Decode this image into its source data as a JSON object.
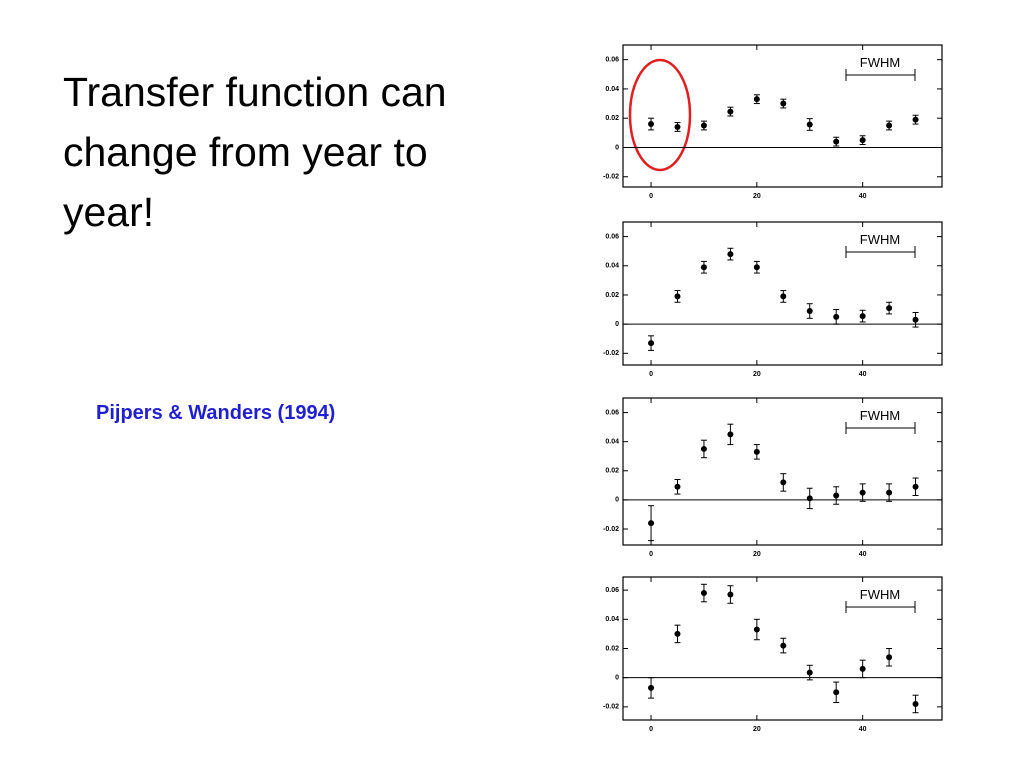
{
  "title": "Transfer function can change from year to year!",
  "citation": "Pijpers & Wanders (1994)",
  "chart_data": [
    {
      "type": "scatter",
      "annotation": "FWHM",
      "x": [
        0,
        5,
        10,
        15,
        20,
        25,
        30,
        35,
        40,
        45,
        50
      ],
      "values": [
        0.016,
        0.014,
        0.015,
        0.0245,
        0.033,
        0.03,
        0.0157,
        0.004,
        0.005,
        0.015,
        0.019
      ],
      "errors": [
        0.004,
        0.003,
        0.003,
        0.003,
        0.003,
        0.003,
        0.004,
        0.003,
        0.003,
        0.003,
        0.003
      ],
      "xlim": [
        -5.3,
        55
      ],
      "ylim": [
        -0.027,
        0.07
      ],
      "xticks": [
        0,
        20,
        40
      ],
      "yticks": [
        0.06,
        0.04,
        0.02,
        0,
        -0.02
      ]
    },
    {
      "type": "scatter",
      "annotation": "FWHM",
      "x": [
        0,
        5,
        10,
        15,
        20,
        25,
        30,
        35,
        40,
        45,
        50
      ],
      "values": [
        -0.013,
        0.019,
        0.039,
        0.048,
        0.039,
        0.019,
        0.009,
        0.005,
        0.0055,
        0.011,
        0.003
      ],
      "errors": [
        0.005,
        0.004,
        0.004,
        0.004,
        0.004,
        0.004,
        0.005,
        0.005,
        0.004,
        0.004,
        0.005
      ],
      "xlim": [
        -5.3,
        55
      ],
      "ylim": [
        -0.028,
        0.07
      ],
      "xticks": [
        0,
        20,
        40
      ],
      "yticks": [
        0.06,
        0.04,
        0.02,
        0,
        -0.02
      ]
    },
    {
      "type": "scatter",
      "annotation": "FWHM",
      "x": [
        0,
        5,
        10,
        15,
        20,
        25,
        30,
        35,
        40,
        45,
        50
      ],
      "values": [
        -0.016,
        0.009,
        0.035,
        0.045,
        0.033,
        0.012,
        0.001,
        0.003,
        0.005,
        0.005,
        0.009
      ],
      "errors": [
        0.012,
        0.005,
        0.006,
        0.007,
        0.005,
        0.006,
        0.007,
        0.006,
        0.006,
        0.006,
        0.006
      ],
      "xlim": [
        -5.3,
        55
      ],
      "ylim": [
        -0.031,
        0.07
      ],
      "xticks": [
        0,
        20,
        40
      ],
      "yticks": [
        0.06,
        0.04,
        0.02,
        0,
        -0.02
      ]
    },
    {
      "type": "scatter",
      "annotation": "FWHM",
      "x": [
        0,
        5,
        10,
        15,
        20,
        25,
        30,
        35,
        40,
        45,
        50
      ],
      "values": [
        -0.007,
        0.03,
        0.058,
        0.057,
        0.033,
        0.022,
        0.0035,
        -0.01,
        0.006,
        0.014,
        -0.018
      ],
      "errors": [
        0.007,
        0.006,
        0.006,
        0.006,
        0.007,
        0.005,
        0.005,
        0.007,
        0.006,
        0.006,
        0.006
      ],
      "xlim": [
        -5.3,
        55
      ],
      "ylim": [
        -0.029,
        0.069
      ],
      "xticks": [
        0,
        20,
        40
      ],
      "yticks": [
        0.06,
        0.04,
        0.02,
        0,
        -0.02
      ]
    }
  ]
}
